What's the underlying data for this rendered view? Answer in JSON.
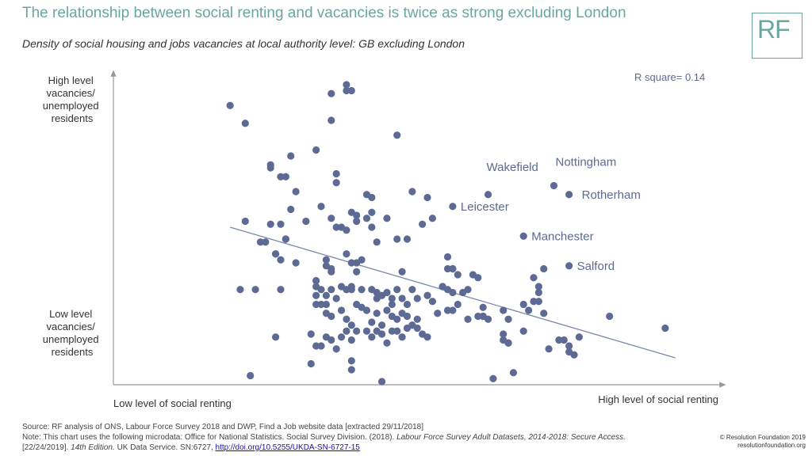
{
  "header": {
    "title": "The relationship between social renting and vacancies is twice as strong excluding London",
    "subtitle": "Density of social housing and jobs vacancies at local authority level: GB excluding London",
    "logo_text": "RF"
  },
  "chart_data": {
    "type": "scatter",
    "title": "The relationship between social renting and vacancies is twice as strong excluding London",
    "subtitle": "Density of social housing and jobs vacancies at local authority level: GB excluding London",
    "xlabel_low": "Low level of social renting",
    "xlabel_high": "High level of social renting",
    "ylabel_high": [
      "High level",
      "vacancies/",
      "unemployed",
      "residents"
    ],
    "ylabel_low": [
      "Low level",
      "vacancies/",
      "unemployed",
      "residents"
    ],
    "annotation": "R square= 0.14",
    "xlim": [
      0,
      100
    ],
    "ylim": [
      0,
      100
    ],
    "grid": false,
    "point_color": "#5c6a94",
    "line_color": "#7b88ad",
    "trendline": [
      [
        11,
        52
      ],
      [
        99,
        8
      ]
    ],
    "labeled_points": [
      {
        "label": "Wakefield",
        "x": 62,
        "y": 63
      },
      {
        "label": "Leicester",
        "x": 55,
        "y": 59
      },
      {
        "label": "Nottingham",
        "x": 75,
        "y": 66
      },
      {
        "label": "Rotherham",
        "x": 78,
        "y": 63
      },
      {
        "label": "Manchester",
        "x": 69,
        "y": 49
      },
      {
        "label": "Salford",
        "x": 78,
        "y": 39
      }
    ],
    "points": [
      [
        11,
        93
      ],
      [
        14,
        87
      ],
      [
        31,
        97
      ],
      [
        34,
        100
      ],
      [
        34,
        98
      ],
      [
        35,
        98
      ],
      [
        31,
        88
      ],
      [
        44,
        83
      ],
      [
        23,
        76
      ],
      [
        28,
        78
      ],
      [
        19,
        73
      ],
      [
        19,
        72
      ],
      [
        21,
        69
      ],
      [
        22,
        69
      ],
      [
        32,
        70
      ],
      [
        32,
        67
      ],
      [
        39,
        62
      ],
      [
        38,
        63
      ],
      [
        47,
        64
      ],
      [
        50,
        62
      ],
      [
        14,
        54
      ],
      [
        19,
        53
      ],
      [
        21,
        53
      ],
      [
        31,
        55
      ],
      [
        32,
        52
      ],
      [
        33,
        52
      ],
      [
        34,
        51
      ],
      [
        35,
        57
      ],
      [
        36,
        56
      ],
      [
        36,
        54
      ],
      [
        38,
        55
      ],
      [
        39,
        57
      ],
      [
        44,
        48
      ],
      [
        46,
        48
      ],
      [
        49,
        53
      ],
      [
        51,
        55
      ],
      [
        17,
        47
      ],
      [
        20,
        43
      ],
      [
        20,
        43
      ],
      [
        21,
        41
      ],
      [
        22,
        48
      ],
      [
        22,
        48
      ],
      [
        30,
        41
      ],
      [
        30,
        39
      ],
      [
        31,
        38
      ],
      [
        31,
        37
      ],
      [
        34,
        43
      ],
      [
        35,
        40
      ],
      [
        36,
        40
      ],
      [
        37,
        41
      ],
      [
        13,
        31
      ],
      [
        16,
        31
      ],
      [
        21,
        31
      ],
      [
        28,
        34
      ],
      [
        28,
        32
      ],
      [
        28,
        29
      ],
      [
        29,
        31
      ],
      [
        30,
        29
      ],
      [
        30,
        26
      ],
      [
        31,
        31
      ],
      [
        32,
        28
      ],
      [
        33,
        32
      ],
      [
        34,
        31
      ],
      [
        35,
        31
      ],
      [
        35,
        32
      ],
      [
        36,
        37
      ],
      [
        37,
        31
      ],
      [
        39,
        31
      ],
      [
        40,
        30
      ],
      [
        40,
        28
      ],
      [
        41,
        29
      ],
      [
        42,
        30
      ],
      [
        43,
        28
      ],
      [
        44,
        31
      ],
      [
        45,
        28
      ],
      [
        46,
        26
      ],
      [
        47,
        31
      ],
      [
        48,
        28
      ],
      [
        50,
        29
      ],
      [
        51,
        27
      ],
      [
        28,
        26
      ],
      [
        29,
        26
      ],
      [
        30,
        23
      ],
      [
        31,
        22
      ],
      [
        33,
        24
      ],
      [
        34,
        21
      ],
      [
        35,
        19
      ],
      [
        36,
        26
      ],
      [
        37,
        25
      ],
      [
        38,
        24
      ],
      [
        39,
        20
      ],
      [
        40,
        23
      ],
      [
        41,
        19
      ],
      [
        42,
        24
      ],
      [
        43,
        22
      ],
      [
        44,
        21
      ],
      [
        45,
        23
      ],
      [
        46,
        22
      ],
      [
        47,
        19
      ],
      [
        48,
        21
      ],
      [
        20,
        15
      ],
      [
        27,
        16
      ],
      [
        28,
        12
      ],
      [
        29,
        12
      ],
      [
        30,
        15
      ],
      [
        31,
        14
      ],
      [
        32,
        11
      ],
      [
        33,
        15
      ],
      [
        34,
        17
      ],
      [
        35,
        14
      ],
      [
        36,
        17
      ],
      [
        38,
        17
      ],
      [
        39,
        15
      ],
      [
        40,
        17
      ],
      [
        41,
        16
      ],
      [
        42,
        13
      ],
      [
        43,
        17
      ],
      [
        44,
        17
      ],
      [
        45,
        15
      ],
      [
        46,
        18
      ],
      [
        27,
        6
      ],
      [
        35,
        7
      ],
      [
        35,
        4
      ],
      [
        41,
        0
      ],
      [
        15,
        2
      ],
      [
        47,
        19
      ],
      [
        48,
        18
      ],
      [
        49,
        16
      ],
      [
        50,
        15
      ],
      [
        52,
        23
      ],
      [
        53,
        32
      ],
      [
        53,
        32
      ],
      [
        54,
        24
      ],
      [
        54,
        31
      ],
      [
        55,
        30
      ],
      [
        55,
        24
      ],
      [
        56,
        26
      ],
      [
        57,
        30
      ],
      [
        58,
        31
      ],
      [
        58,
        21
      ],
      [
        54,
        42
      ],
      [
        55,
        38
      ],
      [
        56,
        36
      ],
      [
        59,
        36
      ],
      [
        60,
        35
      ],
      [
        60,
        22
      ],
      [
        61,
        22
      ],
      [
        61,
        22
      ],
      [
        65,
        24
      ],
      [
        66,
        21
      ],
      [
        65,
        14
      ],
      [
        65,
        16
      ],
      [
        66,
        13
      ],
      [
        66,
        13
      ],
      [
        67,
        3
      ],
      [
        63,
        1
      ],
      [
        69,
        17
      ],
      [
        69,
        26
      ],
      [
        70,
        24
      ],
      [
        71,
        27
      ],
      [
        71,
        35
      ],
      [
        72,
        30
      ],
      [
        72,
        32
      ],
      [
        73,
        38
      ],
      [
        73,
        23
      ],
      [
        74,
        11
      ],
      [
        77,
        14
      ],
      [
        78,
        12
      ],
      [
        78,
        10
      ],
      [
        79,
        9
      ],
      [
        80,
        15
      ],
      [
        86,
        22
      ],
      [
        97,
        18
      ],
      [
        24,
        40
      ],
      [
        26,
        54
      ],
      [
        62,
        21
      ],
      [
        45,
        37
      ],
      [
        55,
        38
      ],
      [
        72,
        27
      ],
      [
        76,
        14
      ],
      [
        43,
        26
      ],
      [
        61,
        25
      ],
      [
        29,
        59
      ],
      [
        18,
        47
      ],
      [
        54,
        38
      ],
      [
        39,
        52
      ],
      [
        40,
        47
      ],
      [
        42,
        55
      ],
      [
        23,
        58
      ],
      [
        24,
        64
      ]
    ]
  },
  "footer": {
    "source": "Source: RF analysis of ONS, Labour Force Survey 2018 and DWP, Find a Job website data [extracted 29/11/2018]",
    "note_prefix": "Note: This chart uses the following microdata: Office for National Statistics. Social Survey Division. (2018).",
    "note_title": "Labour Force Survey Adult Datasets, 2014-2018: Secure Access.",
    "note_suffix": "[22/24/2019].",
    "note_edition": "14th Edition.",
    "note_service": "UK Data Service. SN:6727,",
    "note_link": "http://doi.org/10.5255/UKDA-SN-6727-15",
    "copyright": "© Resolution Foundation 2019",
    "website": "resolutionfoundation.org"
  }
}
